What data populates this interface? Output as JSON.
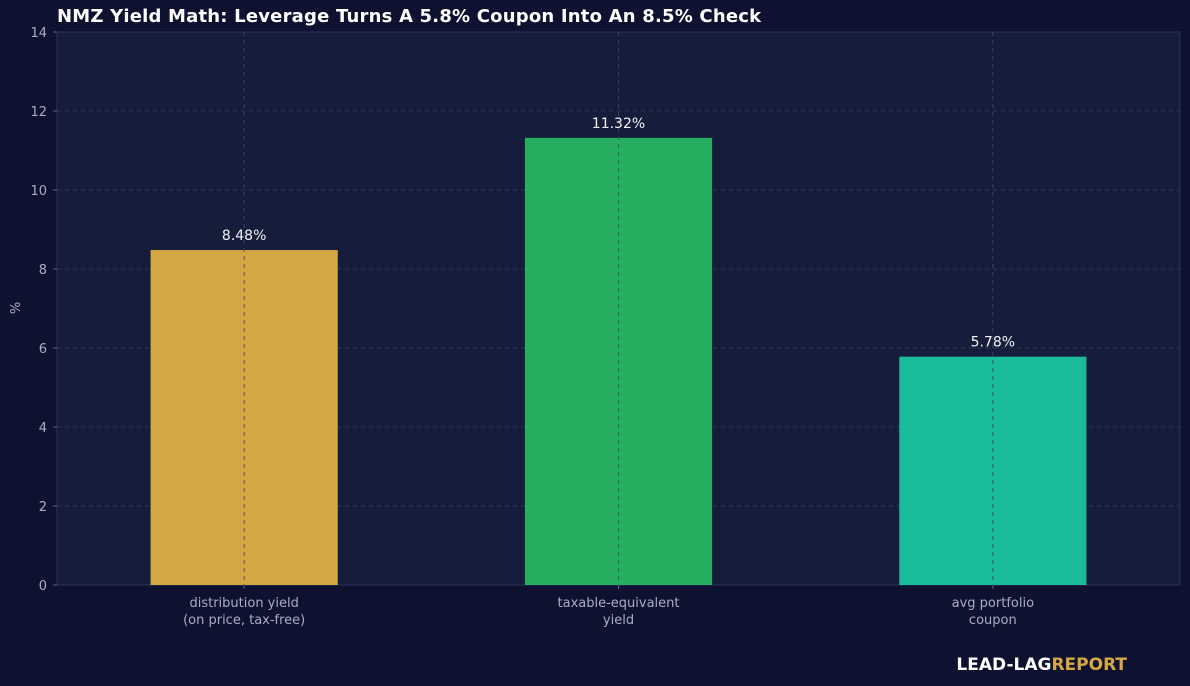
{
  "title": "NMZ Yield Math: Leverage Turns A 5.8% Coupon Into An 8.5% Check",
  "brand": {
    "part1": "LEAD-LAG",
    "part2": "REPORT"
  },
  "chart_data": {
    "type": "bar",
    "categories": [
      [
        "distribution yield",
        "(on price, tax-free)"
      ],
      [
        "taxable-equivalent",
        "yield"
      ],
      [
        "avg portfolio",
        "coupon"
      ]
    ],
    "values": [
      8.48,
      11.32,
      5.78
    ],
    "data_labels": [
      "8.48%",
      "11.32%",
      "5.78%"
    ],
    "colors": [
      "#d4a843",
      "#27ae60",
      "#1abc9c"
    ],
    "ylabel": "%",
    "ylim": [
      0,
      14
    ],
    "yticks": [
      0,
      2,
      4,
      6,
      8,
      10,
      12,
      14
    ],
    "grid": true
  }
}
